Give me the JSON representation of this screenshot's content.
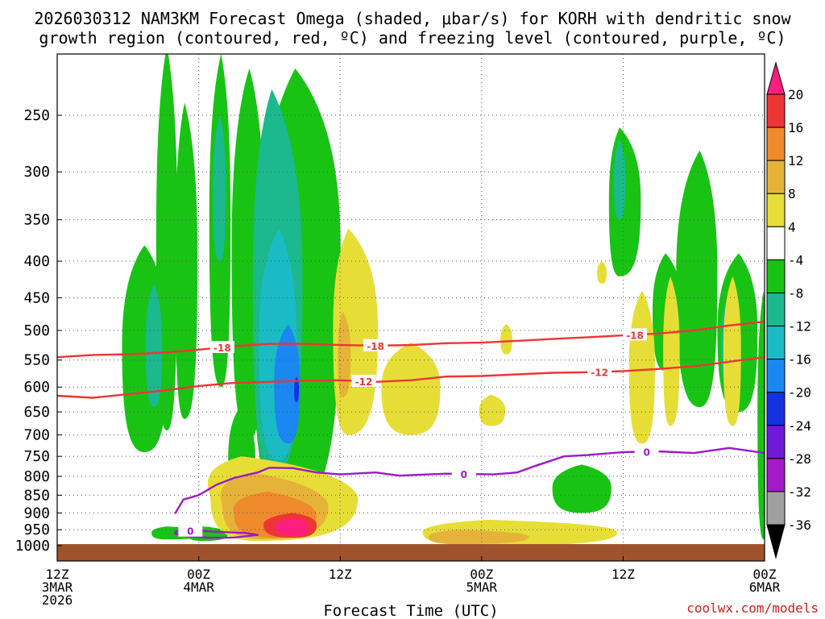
{
  "chart_data": {
    "type": "heatmap",
    "title_line1": "2026030312 NAM3KM Forecast Omega (shaded, μbar/s) for KORH with dendritic snow",
    "title_line2": "growth region (contoured, red, ºC) and freezing level (contoured, purple, ºC)",
    "xlabel": "Forecast Time (UTC)",
    "ylabel": "",
    "x_ticks": [
      {
        "hour": 0,
        "lines": [
          "12Z",
          "3MAR",
          "2026"
        ]
      },
      {
        "hour": 12,
        "lines": [
          "00Z",
          "4MAR"
        ]
      },
      {
        "hour": 24,
        "lines": [
          "12Z"
        ]
      },
      {
        "hour": 36,
        "lines": [
          "00Z",
          "5MAR"
        ]
      },
      {
        "hour": 48,
        "lines": [
          "12Z"
        ]
      },
      {
        "hour": 60,
        "lines": [
          "00Z",
          "6MAR"
        ]
      }
    ],
    "xlim": [
      0,
      60
    ],
    "y_ticks": [
      250,
      300,
      350,
      400,
      450,
      500,
      550,
      600,
      650,
      700,
      750,
      800,
      850,
      900,
      950,
      1000
    ],
    "ylim": [
      1010,
      200
    ],
    "colorbar": {
      "labels": [
        "20",
        "16",
        "12",
        "8",
        "4",
        "-4",
        "-8",
        "-12",
        "-16",
        "-20",
        "-24",
        "-28",
        "-32",
        "-36"
      ],
      "colors": [
        "#ff1e7e",
        "#ee3535",
        "#ef8a2d",
        "#e6b33a",
        "#e6de36",
        "#ffffff",
        "#18c314",
        "#1cb88e",
        "#1bbbc6",
        "#1a88f0",
        "#1432e0",
        "#6e1ad8",
        "#a41ac8",
        "#a0a0a0",
        "#000000"
      ]
    },
    "shading": {
      "green": "#18c314",
      "teal": "#1cb88e",
      "cyan": "#1bbbc6",
      "blue": "#1a88f0",
      "darkblue": "#1432e0",
      "yellow": "#e6de36",
      "gold": "#e6b33a",
      "orange": "#ef8a2d",
      "red": "#ee3535",
      "pink": "#ff1e7e",
      "ground": "#a0522d"
    },
    "contours": [
      {
        "label": "-18",
        "color": "#ee3535",
        "points": [
          [
            0,
            545
          ],
          [
            3,
            541
          ],
          [
            6,
            540
          ],
          [
            9,
            537
          ],
          [
            12,
            532
          ],
          [
            15,
            526
          ],
          [
            18,
            522
          ],
          [
            21,
            522
          ],
          [
            24,
            524
          ],
          [
            27,
            525
          ],
          [
            30,
            524
          ],
          [
            33,
            521
          ],
          [
            36,
            520
          ],
          [
            39,
            517
          ],
          [
            42,
            514
          ],
          [
            45,
            511
          ],
          [
            48,
            508
          ],
          [
            51,
            505
          ],
          [
            54,
            500
          ],
          [
            57,
            492
          ],
          [
            60,
            486
          ]
        ],
        "label_positions": [
          14,
          27,
          49
        ]
      },
      {
        "label": "-12",
        "color": "#ee3535",
        "points": [
          [
            0,
            617
          ],
          [
            3,
            621
          ],
          [
            6,
            614
          ],
          [
            9,
            607
          ],
          [
            12,
            598
          ],
          [
            15,
            592
          ],
          [
            18,
            590
          ],
          [
            21,
            588
          ],
          [
            24,
            587
          ],
          [
            27,
            590
          ],
          [
            30,
            587
          ],
          [
            33,
            580
          ],
          [
            36,
            579
          ],
          [
            39,
            576
          ],
          [
            42,
            573
          ],
          [
            45,
            572
          ],
          [
            48,
            570
          ],
          [
            51,
            566
          ],
          [
            54,
            561
          ],
          [
            57,
            553
          ],
          [
            60,
            545
          ]
        ],
        "label_positions": [
          26,
          46
        ]
      },
      {
        "label": "0",
        "color": "#9c1ac8",
        "points": [
          [
            10,
            902
          ],
          [
            10.7,
            862
          ],
          [
            12,
            850
          ],
          [
            13.5,
            822
          ],
          [
            15,
            804
          ],
          [
            17,
            790
          ],
          [
            18,
            778
          ],
          [
            20,
            779
          ],
          [
            22,
            790
          ],
          [
            24,
            795
          ],
          [
            27,
            790
          ],
          [
            29,
            798
          ],
          [
            33,
            793
          ],
          [
            37,
            795
          ],
          [
            39,
            790
          ],
          [
            40.5,
            774
          ],
          [
            43,
            750
          ],
          [
            45,
            747
          ],
          [
            48,
            740
          ],
          [
            51,
            738
          ],
          [
            54,
            742
          ],
          [
            57,
            730
          ],
          [
            60,
            742
          ]
        ],
        "label_positions": [
          34.5,
          50
        ]
      },
      {
        "label": "0",
        "color": "#9c1ac8",
        "points": [
          [
            10,
            955
          ],
          [
            12,
            953
          ],
          [
            14,
            957
          ],
          [
            16,
            960
          ],
          [
            17,
            966
          ],
          [
            15,
            974
          ],
          [
            13,
            975
          ],
          [
            11,
            970
          ],
          [
            10,
            962
          ],
          [
            10,
            955
          ]
        ],
        "label_positions": [
          11.3
        ]
      }
    ],
    "credit": "coolwx.com/models"
  }
}
